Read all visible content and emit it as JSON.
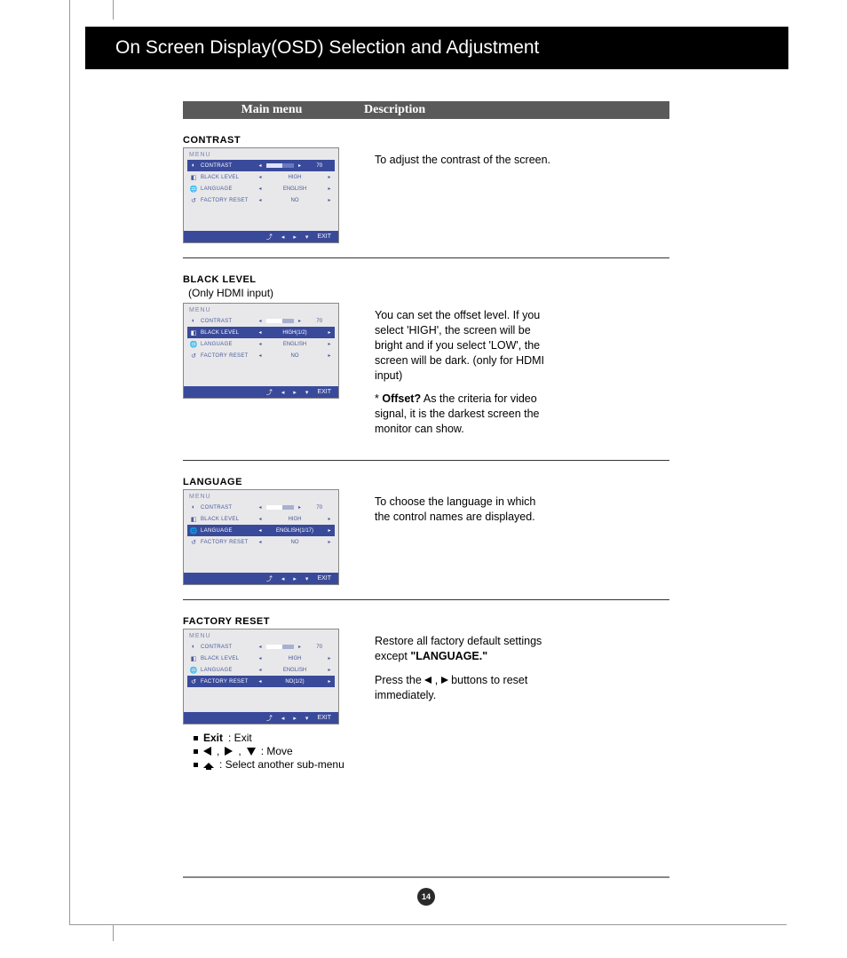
{
  "header": {
    "title": "On Screen Display(OSD) Selection and Adjustment"
  },
  "columns": {
    "main": "Main menu",
    "desc": "Description"
  },
  "osd_common": {
    "menu_label": "MENU",
    "rows": {
      "contrast": "CONTRAST",
      "black_level": "BLACK LEVEL",
      "language": "LANGUAGE",
      "factory_reset": "FACTORY RESET"
    },
    "values": {
      "high": "HIGH",
      "high_sel": "HIGH(1/2)",
      "english": "ENGLISH",
      "english_sel": "ENGLISH(1/17)",
      "no": "NO",
      "no_sel": "NO(1/2)",
      "seventy": "70"
    },
    "nav": {
      "exit": "EXIT"
    }
  },
  "sections": {
    "contrast": {
      "title": "CONTRAST",
      "desc": "To adjust the contrast of the screen."
    },
    "black_level": {
      "title": "BLACK LEVEL",
      "subtitle": "(Only HDMI input)",
      "desc1": "You can set the offset level. If you select 'HIGH', the screen will be bright and if you select 'LOW', the screen will be dark. (only for HDMI input)",
      "desc2a": "* ",
      "desc2b": "Offset?",
      "desc2c": " As the criteria for video signal, it is the darkest screen the monitor can show."
    },
    "language": {
      "title": "LANGUAGE",
      "desc": "To choose the language in which the control names are displayed."
    },
    "factory_reset": {
      "title": "FACTORY RESET",
      "desc1": "Restore all factory default settings except ",
      "desc1b": "\"LANGUAGE.\"",
      "desc2a": "Press the ",
      "desc2b": " , ",
      "desc2c": " buttons to reset immediately."
    }
  },
  "legend": {
    "exit_label": "Exit",
    "exit_desc": " : Exit",
    "move": " : Move",
    "submenu": " : Select another sub-menu"
  },
  "page_number": "14",
  "colors": {
    "header_bg": "#000000",
    "header_fg": "#ffffff",
    "colhead_bg": "#5a5a5a",
    "osd_bg": "#e8e8ea",
    "osd_accent": "#3a4a9a",
    "osd_text": "#4a5a9a",
    "rule": "#888888"
  }
}
